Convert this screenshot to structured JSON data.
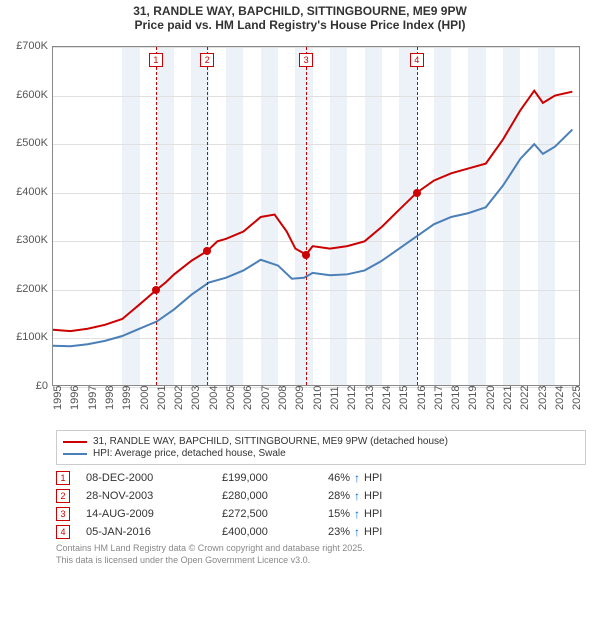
{
  "title1": "31, RANDLE WAY, BAPCHILD, SITTINGBOURNE, ME9 9PW",
  "title2": "Price paid vs. HM Land Registry's House Price Index (HPI)",
  "chart": {
    "type": "line",
    "background_color": "#ffffff",
    "grid_color": "#e0e0e0",
    "border_color": "#888888",
    "x_min": 1995,
    "x_max": 2025.5,
    "y_min": 0,
    "y_max": 700000,
    "yticks": [
      0,
      100000,
      200000,
      300000,
      400000,
      500000,
      600000,
      700000
    ],
    "ytick_labels": [
      "£0",
      "£100K",
      "£200K",
      "£300K",
      "£400K",
      "£500K",
      "£600K",
      "£700K"
    ],
    "xticks": [
      1995,
      1996,
      1997,
      1998,
      1999,
      2000,
      2001,
      2002,
      2003,
      2004,
      2005,
      2006,
      2007,
      2008,
      2009,
      2010,
      2011,
      2012,
      2013,
      2014,
      2015,
      2016,
      2017,
      2018,
      2019,
      2020,
      2021,
      2022,
      2023,
      2024,
      2025
    ],
    "shaded_bands": [
      [
        1999,
        2000
      ],
      [
        2001,
        2002
      ],
      [
        2003,
        2004
      ],
      [
        2005,
        2006
      ],
      [
        2007,
        2008
      ],
      [
        2009,
        2010
      ],
      [
        2011,
        2012
      ],
      [
        2013,
        2014
      ],
      [
        2015,
        2016
      ],
      [
        2017,
        2018
      ],
      [
        2019,
        2020
      ],
      [
        2021,
        2022
      ],
      [
        2023,
        2024
      ]
    ],
    "sale_lines": [
      2000.94,
      2003.91,
      2009.62,
      2016.01
    ],
    "series": [
      {
        "name": "property",
        "color": "#cc0000",
        "width": 2,
        "points": [
          [
            1995,
            118000
          ],
          [
            1996,
            115000
          ],
          [
            1997,
            120000
          ],
          [
            1998,
            128000
          ],
          [
            1999,
            140000
          ],
          [
            2000,
            170000
          ],
          [
            2000.94,
            199000
          ],
          [
            2001.5,
            215000
          ],
          [
            2002,
            232000
          ],
          [
            2003,
            260000
          ],
          [
            2003.91,
            280000
          ],
          [
            2004.5,
            300000
          ],
          [
            2005,
            305000
          ],
          [
            2006,
            320000
          ],
          [
            2007,
            350000
          ],
          [
            2007.8,
            355000
          ],
          [
            2008.5,
            320000
          ],
          [
            2009,
            285000
          ],
          [
            2009.62,
            272500
          ],
          [
            2010,
            290000
          ],
          [
            2011,
            285000
          ],
          [
            2012,
            290000
          ],
          [
            2013,
            300000
          ],
          [
            2014,
            330000
          ],
          [
            2015,
            365000
          ],
          [
            2016.01,
            400000
          ],
          [
            2017,
            425000
          ],
          [
            2018,
            440000
          ],
          [
            2019,
            450000
          ],
          [
            2020,
            460000
          ],
          [
            2021,
            510000
          ],
          [
            2022,
            570000
          ],
          [
            2022.8,
            610000
          ],
          [
            2023.3,
            585000
          ],
          [
            2024,
            600000
          ],
          [
            2025,
            608000
          ]
        ]
      },
      {
        "name": "hpi",
        "color": "#4a7fb8",
        "width": 2,
        "points": [
          [
            1995,
            85000
          ],
          [
            1996,
            84000
          ],
          [
            1997,
            88000
          ],
          [
            1998,
            95000
          ],
          [
            1999,
            105000
          ],
          [
            2000,
            120000
          ],
          [
            2001,
            135000
          ],
          [
            2002,
            160000
          ],
          [
            2003,
            190000
          ],
          [
            2004,
            215000
          ],
          [
            2005,
            225000
          ],
          [
            2006,
            240000
          ],
          [
            2007,
            262000
          ],
          [
            2008,
            250000
          ],
          [
            2008.8,
            223000
          ],
          [
            2009.5,
            225000
          ],
          [
            2010,
            235000
          ],
          [
            2011,
            230000
          ],
          [
            2012,
            232000
          ],
          [
            2013,
            240000
          ],
          [
            2014,
            260000
          ],
          [
            2015,
            285000
          ],
          [
            2016,
            310000
          ],
          [
            2017,
            335000
          ],
          [
            2018,
            350000
          ],
          [
            2019,
            358000
          ],
          [
            2020,
            370000
          ],
          [
            2021,
            415000
          ],
          [
            2022,
            470000
          ],
          [
            2022.8,
            500000
          ],
          [
            2023.3,
            480000
          ],
          [
            2024,
            495000
          ],
          [
            2025,
            530000
          ]
        ]
      }
    ],
    "sale_points": [
      [
        2000.94,
        199000
      ],
      [
        2003.91,
        280000
      ],
      [
        2009.62,
        272500
      ],
      [
        2016.01,
        400000
      ]
    ],
    "marker_labels": [
      "1",
      "2",
      "3",
      "4"
    ],
    "label_fontsize": 11
  },
  "legend": {
    "items": [
      {
        "color": "#cc0000",
        "label": "31, RANDLE WAY, BAPCHILD, SITTINGBOURNE, ME9 9PW (detached house)"
      },
      {
        "color": "#4a7fb8",
        "label": "HPI: Average price, detached house, Swale"
      }
    ]
  },
  "sales": [
    {
      "n": "1",
      "date": "08-DEC-2000",
      "price": "£199,000",
      "delta": "46%",
      "suffix": "HPI"
    },
    {
      "n": "2",
      "date": "28-NOV-2003",
      "price": "£280,000",
      "delta": "28%",
      "suffix": "HPI"
    },
    {
      "n": "3",
      "date": "14-AUG-2009",
      "price": "£272,500",
      "delta": "15%",
      "suffix": "HPI"
    },
    {
      "n": "4",
      "date": "05-JAN-2016",
      "price": "£400,000",
      "delta": "23%",
      "suffix": "HPI"
    }
  ],
  "footnote1": "Contains HM Land Registry data © Crown copyright and database right 2025.",
  "footnote2": "This data is licensed under the Open Government Licence v3.0.",
  "colors": {
    "accent": "#cc0000",
    "hpi": "#4a7fb8",
    "arrow": "#0066cc",
    "shade": "#e6ecf5"
  }
}
